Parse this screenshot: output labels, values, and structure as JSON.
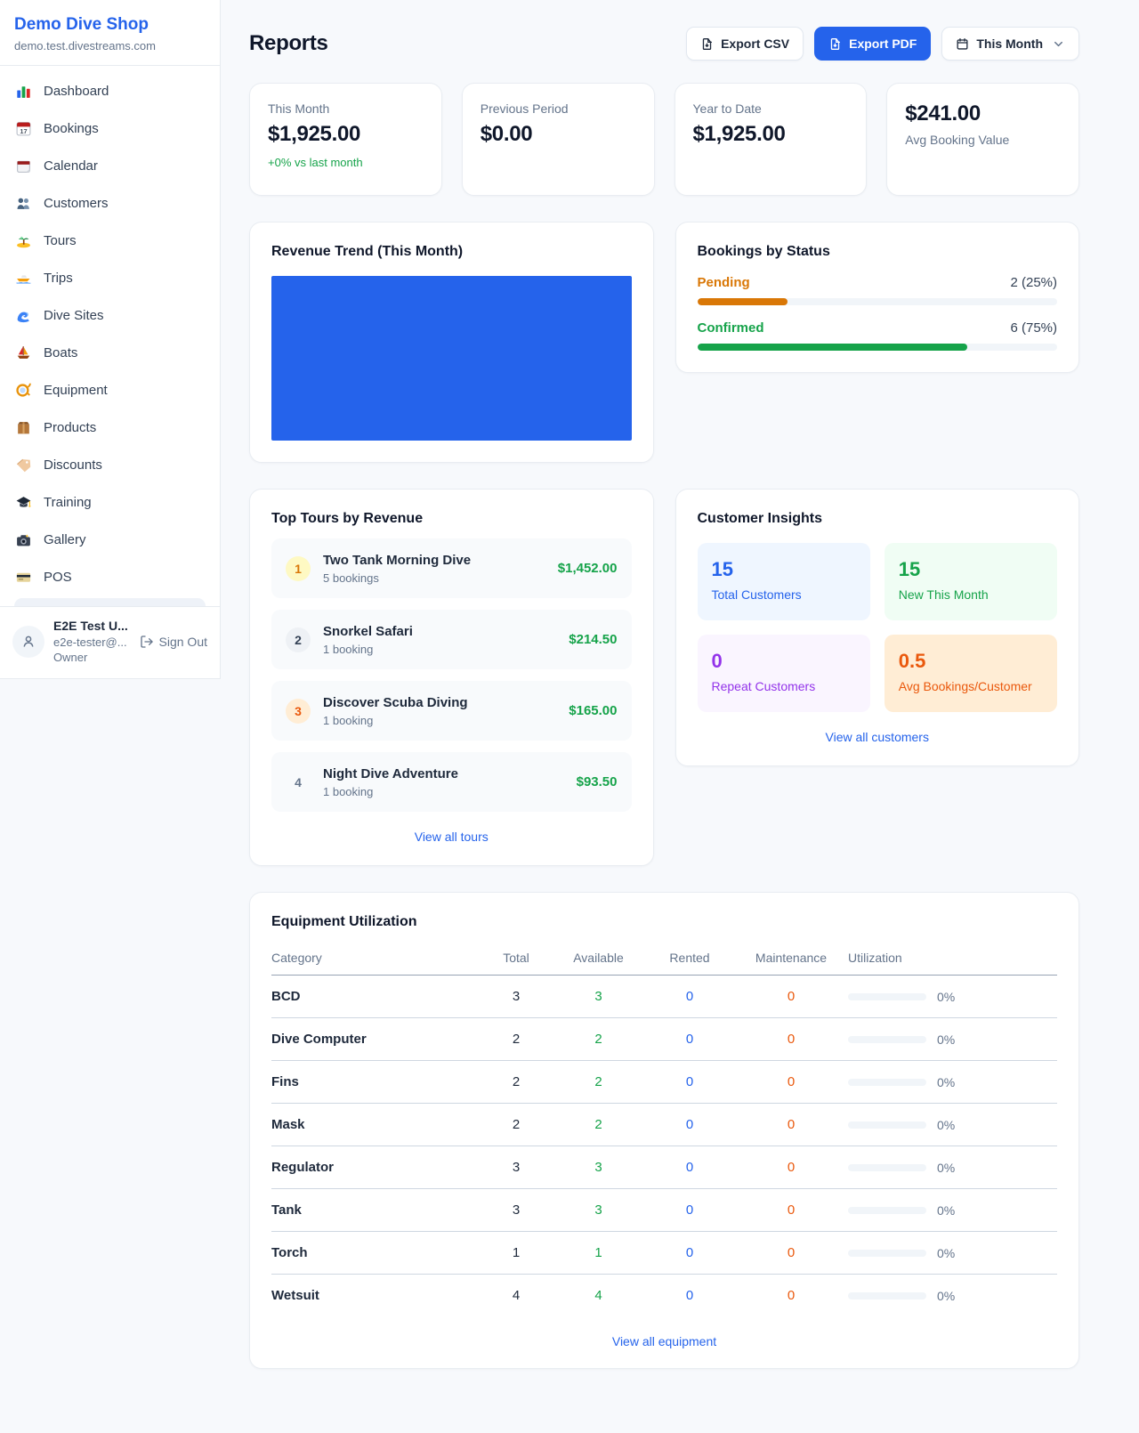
{
  "sidebar": {
    "shop_name": "Demo Dive Shop",
    "shop_domain": "demo.test.divestreams.com",
    "nav": [
      {
        "label": "Dashboard",
        "icon": "bar-chart-icon"
      },
      {
        "label": "Bookings",
        "icon": "calendar-date-icon"
      },
      {
        "label": "Calendar",
        "icon": "notepad-calendar-icon"
      },
      {
        "label": "Customers",
        "icon": "people-icon"
      },
      {
        "label": "Tours",
        "icon": "island-icon"
      },
      {
        "label": "Trips",
        "icon": "speedboat-icon"
      },
      {
        "label": "Dive Sites",
        "icon": "wave-icon"
      },
      {
        "label": "Boats",
        "icon": "sailboat-icon"
      },
      {
        "label": "Equipment",
        "icon": "diving-mask-icon"
      },
      {
        "label": "Products",
        "icon": "package-icon"
      },
      {
        "label": "Discounts",
        "icon": "tag-icon"
      },
      {
        "label": "Training",
        "icon": "graduation-cap-icon"
      },
      {
        "label": "Gallery",
        "icon": "camera-icon"
      },
      {
        "label": "POS",
        "icon": "credit-card-icon"
      }
    ],
    "user": {
      "name": "E2E Test U...",
      "email": "e2e-tester@...",
      "role": "Owner",
      "sign_out_label": "Sign Out"
    }
  },
  "header": {
    "title": "Reports",
    "export_csv_label": "Export CSV",
    "export_pdf_label": "Export PDF",
    "period_label": "This Month"
  },
  "stats": [
    {
      "label": "This Month",
      "value": "$1,925.00",
      "delta": "+0% vs last month"
    },
    {
      "label": "Previous Period",
      "value": "$0.00"
    },
    {
      "label": "Year to Date",
      "value": "$1,925.00"
    },
    {
      "label": "Avg Booking Value",
      "value": "$241.00"
    }
  ],
  "revenue_trend": {
    "title": "Revenue Trend (This Month)",
    "fill_color": "#2563eb"
  },
  "bookings_by_status": {
    "title": "Bookings by Status",
    "items": [
      {
        "label": "Pending",
        "count_text": "2 (25%)",
        "percent": 25,
        "color": "#d97706"
      },
      {
        "label": "Confirmed",
        "count_text": "6 (75%)",
        "percent": 75,
        "color": "#16a34a"
      }
    ]
  },
  "top_tours": {
    "title": "Top Tours by Revenue",
    "items": [
      {
        "rank": "1",
        "name": "Two Tank Morning Dive",
        "bookings": "5 bookings",
        "revenue": "$1,452.00"
      },
      {
        "rank": "2",
        "name": "Snorkel Safari",
        "bookings": "1 booking",
        "revenue": "$214.50"
      },
      {
        "rank": "3",
        "name": "Discover Scuba Diving",
        "bookings": "1 booking",
        "revenue": "$165.00"
      },
      {
        "rank": "4",
        "name": "Night Dive Adventure",
        "bookings": "1 booking",
        "revenue": "$93.50"
      }
    ],
    "view_all_label": "View all tours"
  },
  "customer_insights": {
    "title": "Customer Insights",
    "tiles": [
      {
        "value": "15",
        "label": "Total Customers",
        "text_color": "#2563eb",
        "bg_color": "#eff6ff"
      },
      {
        "value": "15",
        "label": "New This Month",
        "text_color": "#16a34a",
        "bg_color": "#f0fdf4"
      },
      {
        "value": "0",
        "label": "Repeat Customers",
        "text_color": "#9333ea",
        "bg_color": "#faf5ff"
      },
      {
        "value": "0.5",
        "label": "Avg Bookings/Customer",
        "text_color": "#ea580c",
        "bg_color": "#ffedd5"
      }
    ],
    "view_all_label": "View all customers"
  },
  "equipment": {
    "title": "Equipment Utilization",
    "headers": [
      "Category",
      "Total",
      "Available",
      "Rented",
      "Maintenance",
      "Utilization"
    ],
    "rows": [
      {
        "category": "BCD",
        "total": "3",
        "available": "3",
        "rented": "0",
        "maintenance": "0",
        "utilization": "0%"
      },
      {
        "category": "Dive Computer",
        "total": "2",
        "available": "2",
        "rented": "0",
        "maintenance": "0",
        "utilization": "0%"
      },
      {
        "category": "Fins",
        "total": "2",
        "available": "2",
        "rented": "0",
        "maintenance": "0",
        "utilization": "0%"
      },
      {
        "category": "Mask",
        "total": "2",
        "available": "2",
        "rented": "0",
        "maintenance": "0",
        "utilization": "0%"
      },
      {
        "category": "Regulator",
        "total": "3",
        "available": "3",
        "rented": "0",
        "maintenance": "0",
        "utilization": "0%"
      },
      {
        "category": "Tank",
        "total": "3",
        "available": "3",
        "rented": "0",
        "maintenance": "0",
        "utilization": "0%"
      },
      {
        "category": "Torch",
        "total": "1",
        "available": "1",
        "rented": "0",
        "maintenance": "0",
        "utilization": "0%"
      },
      {
        "category": "Wetsuit",
        "total": "4",
        "available": "4",
        "rented": "0",
        "maintenance": "0",
        "utilization": "0%"
      }
    ],
    "view_all_label": "View all equipment"
  },
  "colors": {
    "primary": "#2563eb",
    "success": "#16a34a",
    "pending": "#d97706",
    "maintenance": "#ea580c"
  }
}
